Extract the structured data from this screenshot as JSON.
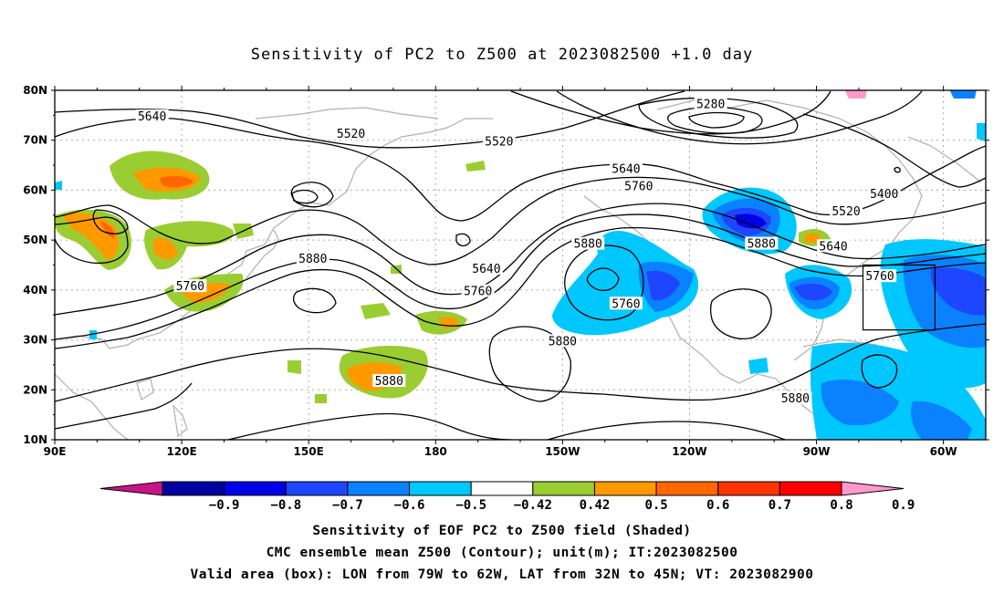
{
  "title": "Sensitivity of PC2 to Z500 at 2023082500 +1.0 day",
  "lat_labels": [
    "80N",
    "70N",
    "60N",
    "50N",
    "40N",
    "30N",
    "20N",
    "10N"
  ],
  "lon_labels": [
    "90E",
    "120E",
    "150E",
    "180",
    "150W",
    "120W",
    "90W",
    "60W"
  ],
  "contour_labels": [
    {
      "text": "5640",
      "lon": 113,
      "lat": 74.5
    },
    {
      "text": "5520",
      "lon": 160,
      "lat": 71
    },
    {
      "text": "5280",
      "lon": -115,
      "lat": 77
    },
    {
      "text": "5520",
      "lon": -165,
      "lat": 69.5
    },
    {
      "text": "5640",
      "lon": -135,
      "lat": 64
    },
    {
      "text": "5760",
      "lon": -132,
      "lat": 60.5
    },
    {
      "text": "5400",
      "lon": -74,
      "lat": 59
    },
    {
      "text": "5520",
      "lon": -83,
      "lat": 55.5
    },
    {
      "text": "5640",
      "lon": -86,
      "lat": 48.5
    },
    {
      "text": "5760",
      "lon": -75,
      "lat": 42.5
    },
    {
      "text": "5880",
      "lon": -144,
      "lat": 49
    },
    {
      "text": "5880",
      "lon": -103,
      "lat": 49
    },
    {
      "text": "5640",
      "lon": -168,
      "lat": 44
    },
    {
      "text": "5760",
      "lon": -170,
      "lat": 39.5
    },
    {
      "text": "5760",
      "lon": -135,
      "lat": 37
    },
    {
      "text": "5880",
      "lon": 151,
      "lat": 46
    },
    {
      "text": "5760",
      "lon": 122,
      "lat": 40.5
    },
    {
      "text": "5880",
      "lon": -150,
      "lat": 29.5
    },
    {
      "text": "5880",
      "lon": 169,
      "lat": 21.5
    },
    {
      "text": "5880",
      "lon": -95,
      "lat": 18
    }
  ],
  "valid_box": {
    "lon_min": -79,
    "lon_max": -62,
    "lat_min": 32,
    "lat_max": 45
  },
  "colorbar": {
    "colors": [
      "#c71585",
      "#0000a0",
      "#0000e6",
      "#1e46ff",
      "#0a82ff",
      "#00c8ff",
      "#ffffff",
      "#9acd32",
      "#ff9900",
      "#ff6600",
      "#ff3300",
      "#ff0000",
      "#ff99cc"
    ],
    "labels": [
      "−0.9",
      "−0.8",
      "−0.7",
      "−0.6",
      "−0.5",
      "−0.42",
      "0.42",
      "0.5",
      "0.6",
      "0.7",
      "0.8",
      "0.9"
    ]
  },
  "caption_lines": [
    "Sensitivity of EOF PC2 to Z500 field (Shaded)",
    "CMC ensemble mean Z500 (Contour); unit(m); IT:2023082500",
    "Valid area (box): LON from 79W to 62W, LAT from 32N to 45N; VT: 2023082900"
  ]
}
